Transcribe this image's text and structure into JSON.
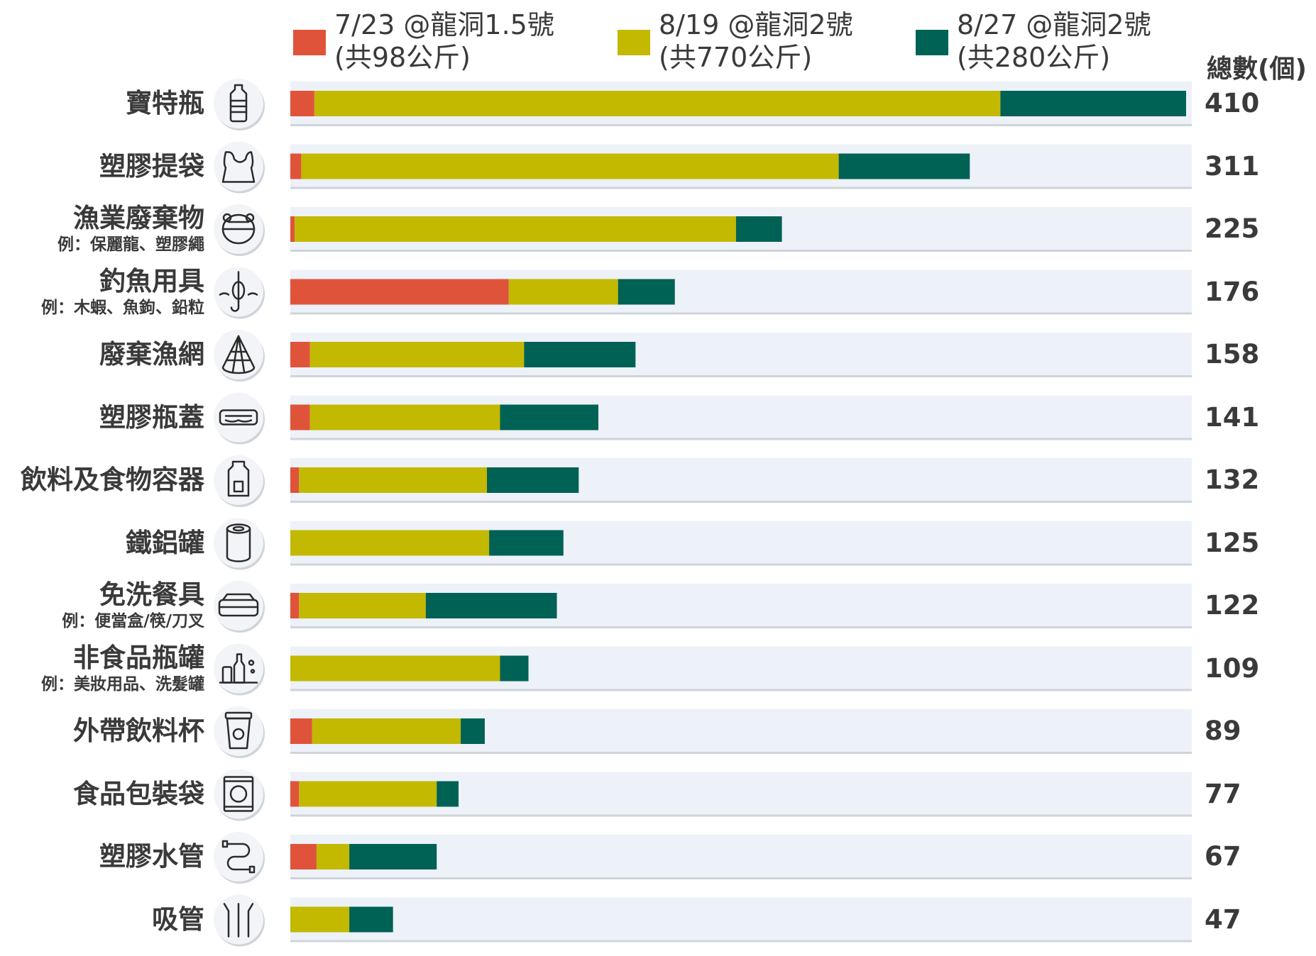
{
  "chart_data": {
    "type": "bar",
    "orientation": "horizontal",
    "stacked": true,
    "total_header": "總數(個)",
    "legend_placement": "top",
    "colors": {
      "s1": "#e0533b",
      "s2": "#c2b900",
      "s3": "#006155",
      "track": "#edf1f8"
    },
    "series": [
      {
        "name_line1": "7/23 @龍洞1.5號",
        "name_line2": "(共98公斤)"
      },
      {
        "name_line1": "8/19 @龍洞2號",
        "name_line2": "(共770公斤)"
      },
      {
        "name_line1": "8/27 @龍洞2號",
        "name_line2": "(共280公斤)"
      }
    ],
    "xlim": [
      0,
      410
    ],
    "categories": [
      {
        "label": "寶特瓶",
        "sub": "",
        "icon": "bottle-icon",
        "values": [
          11,
          314,
          85
        ],
        "total": "410"
      },
      {
        "label": "塑膠提袋",
        "sub": "",
        "icon": "plastic-bag-icon",
        "values": [
          5,
          246,
          60
        ],
        "total": "311"
      },
      {
        "label": "漁業廢棄物",
        "sub": "例：保麗龍、塑膠繩",
        "icon": "fishing-float-icon",
        "values": [
          2,
          202,
          21
        ],
        "total": "225"
      },
      {
        "label": "釣魚用具",
        "sub": "例：木蝦、魚鉤、鉛粒",
        "icon": "fishing-hook-icon",
        "values": [
          100,
          50,
          26
        ],
        "total": "176"
      },
      {
        "label": "廢棄漁網",
        "sub": "",
        "icon": "fishing-net-icon",
        "values": [
          9,
          98,
          51
        ],
        "total": "158"
      },
      {
        "label": "塑膠瓶蓋",
        "sub": "",
        "icon": "bottle-cap-icon",
        "values": [
          9,
          87,
          45
        ],
        "total": "141"
      },
      {
        "label": "飲料及食物容器",
        "sub": "",
        "icon": "container-icon",
        "values": [
          4,
          86,
          42
        ],
        "total": "132"
      },
      {
        "label": "鐵鋁罐",
        "sub": "",
        "icon": "can-icon",
        "values": [
          0,
          91,
          34
        ],
        "total": "125"
      },
      {
        "label": "免洗餐具",
        "sub": "例：便當盒/筷/刀叉",
        "icon": "lunchbox-icon",
        "values": [
          4,
          58,
          60
        ],
        "total": "122"
      },
      {
        "label": "非食品瓶罐",
        "sub": "例：美妝用品、洗髮罐",
        "icon": "cosmetics-icon",
        "values": [
          0,
          96,
          13
        ],
        "total": "109"
      },
      {
        "label": "外帶飲料杯",
        "sub": "",
        "icon": "takeaway-cup-icon",
        "values": [
          10,
          68,
          11
        ],
        "total": "89"
      },
      {
        "label": "食品包裝袋",
        "sub": "",
        "icon": "food-package-icon",
        "values": [
          4,
          63,
          10
        ],
        "total": "77"
      },
      {
        "label": "塑膠水管",
        "sub": "",
        "icon": "water-pipe-icon",
        "values": [
          12,
          15,
          40
        ],
        "total": "67"
      },
      {
        "label": "吸管",
        "sub": "",
        "icon": "straws-icon",
        "values": [
          0,
          27,
          20
        ],
        "total": "47"
      }
    ]
  }
}
